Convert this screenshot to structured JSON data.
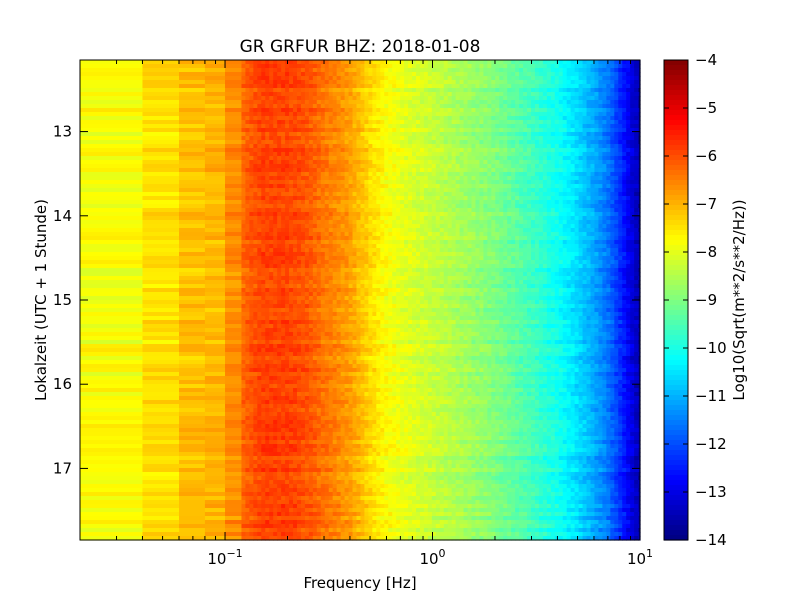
{
  "chart_data": {
    "type": "heatmap",
    "title": "GR GRFUR BHZ: 2018-01-08",
    "xlabel": "Frequency [Hz]",
    "ylabel": "Lokalzeit (UTC + 1 Stunde)",
    "colorbar_label": "Log10(Sqrt(m**2/s**2/Hz))",
    "x_scale": "log",
    "xlim": [
      0.02,
      10
    ],
    "x_ticks": [
      {
        "value": 0.1,
        "base": "10",
        "exp": "−1"
      },
      {
        "value": 1,
        "base": "10",
        "exp": "0"
      },
      {
        "value": 10,
        "base": "10",
        "exp": "1"
      }
    ],
    "ylim": [
      12.15,
      17.85
    ],
    "y_inverted": true,
    "y_ticks": [
      "13",
      "14",
      "15",
      "16",
      "17"
    ],
    "colorbar_range": [
      -14,
      -4
    ],
    "colorbar_ticks": [
      "−4",
      "−5",
      "−6",
      "−7",
      "−8",
      "−9",
      "−10",
      "−11",
      "−12",
      "−13",
      "−14"
    ],
    "colormap": "jet",
    "spectrum_profile": {
      "frequency_hz": [
        0.02,
        0.04,
        0.06,
        0.08,
        0.1,
        0.12,
        0.15,
        0.2,
        0.25,
        0.3,
        0.4,
        0.5,
        0.6,
        0.8,
        1.0,
        1.5,
        2.0,
        3.0,
        4.0,
        5.0,
        6.0,
        7.0,
        8.0,
        9.0,
        10.0
      ],
      "log10_amplitude": [
        -7.9,
        -7.7,
        -7.2,
        -7.1,
        -7.0,
        -6.3,
        -5.9,
        -5.9,
        -6.1,
        -6.4,
        -6.8,
        -7.4,
        -7.8,
        -8.1,
        -8.3,
        -8.7,
        -9.0,
        -9.6,
        -10.1,
        -10.6,
        -11.1,
        -11.6,
        -12.3,
        -13.0,
        -13.6
      ]
    }
  }
}
